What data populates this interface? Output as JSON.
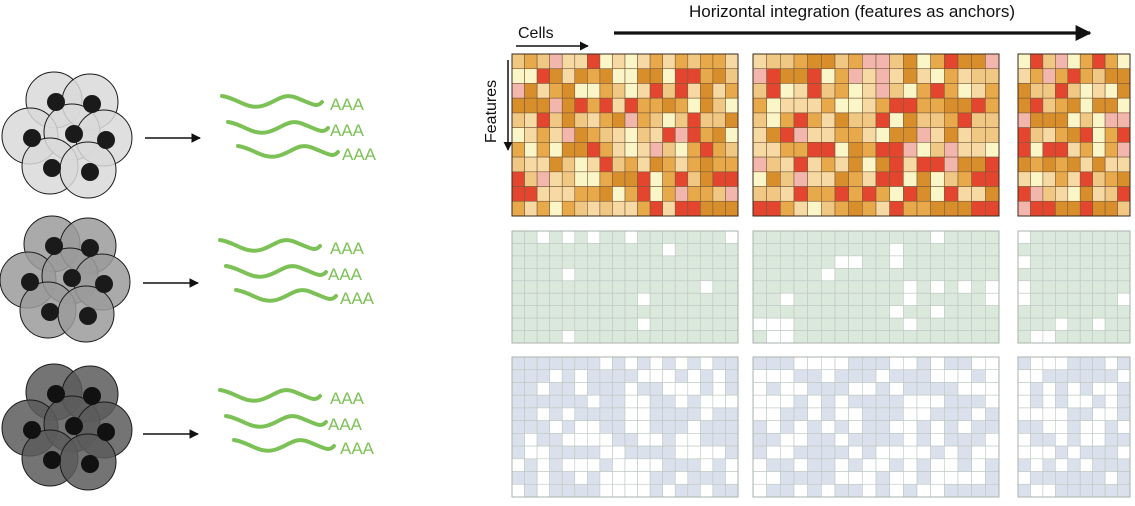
{
  "header": {
    "integration_label": "Horizontal integration (features as anchors)",
    "cells_label": "Cells",
    "features_label": "Features"
  },
  "mrna_label": "AAA",
  "colors": {
    "transcript_green": "#7cc155",
    "heat_palette": [
      "#fbf6c8",
      "#f6d9a3",
      "#f0c884",
      "#e8a94a",
      "#d98e2c",
      "#e4452f",
      "#f3b6ad"
    ],
    "green_fill": "#dbe8dc",
    "green_empty": "#ffffff",
    "blue_fill": "#dbe1ec",
    "blue_empty": "#ffffff",
    "grid_line_dark": "#7a5a3a",
    "grid_line_light": "#bcc7c0"
  },
  "cell_clusters": [
    {
      "name": "cluster-light",
      "cell_color": "#d9d9d9",
      "nucleus_color": "#1a1a1a"
    },
    {
      "name": "cluster-medium",
      "cell_color": "#9b9b9b",
      "nucleus_color": "#1a1a1a"
    },
    {
      "name": "cluster-dark",
      "cell_color": "#5c5c5c",
      "nucleus_color": "#111111"
    }
  ],
  "matrix_blocks": [
    {
      "name": "block-1",
      "columns": 18
    },
    {
      "name": "block-2",
      "columns": 18
    },
    {
      "name": "block-3",
      "columns": 9
    }
  ],
  "matrix_rows": 11,
  "layers": [
    {
      "name": "expression-layer",
      "style": "heat"
    },
    {
      "name": "accessibility-layer",
      "style": "green"
    },
    {
      "name": "methylation-layer",
      "style": "blue"
    }
  ]
}
